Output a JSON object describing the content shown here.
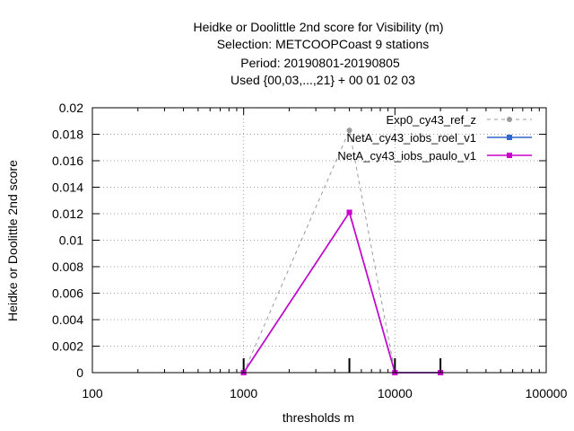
{
  "chart_data": {
    "type": "line",
    "title_lines": [
      "Heidke or Doolittle 2nd score  for Visibility (m)",
      "Selection: METCOOPCoast      9 stations",
      "Period: 20190801-20190805",
      "Used {00,03,...,21} + 00 01 02 03"
    ],
    "xlabel": "thresholds m",
    "ylabel": "Heidke or Doolittle 2nd score",
    "xscale": "log",
    "xlim": [
      100,
      100000
    ],
    "ylim": [
      0,
      0.02
    ],
    "x_ticks": [
      {
        "value": 100,
        "label": "100"
      },
      {
        "value": 1000,
        "label": "1000"
      },
      {
        "value": 10000,
        "label": "10000"
      },
      {
        "value": 100000,
        "label": "100000"
      }
    ],
    "y_ticks": [
      {
        "value": 0,
        "label": "0"
      },
      {
        "value": 0.002,
        "label": "0.002"
      },
      {
        "value": 0.004,
        "label": "0.004"
      },
      {
        "value": 0.006,
        "label": "0.006"
      },
      {
        "value": 0.008,
        "label": "0.008"
      },
      {
        "value": 0.01,
        "label": "0.01"
      },
      {
        "value": 0.012,
        "label": "0.012"
      },
      {
        "value": 0.014,
        "label": "0.014"
      },
      {
        "value": 0.016,
        "label": "0.016"
      },
      {
        "value": 0.018,
        "label": "0.018"
      },
      {
        "value": 0.02,
        "label": "0.02"
      }
    ],
    "grid": true,
    "legend_position": "top-right",
    "observation_marks_x": [
      1000,
      5000,
      10000,
      20000
    ],
    "series": [
      {
        "name": "Exp0_cy43_ref_z",
        "color": "#999999",
        "dash": "dashed",
        "marker": "circle",
        "x": [
          1000,
          5000,
          10000,
          20000
        ],
        "y": [
          0.0,
          0.0183,
          0.0,
          0.0
        ]
      },
      {
        "name": "NetA_cy43_iobs_roel_v1",
        "color": "#3366cc",
        "dash": "solid",
        "marker": "square",
        "x": [
          1000,
          5000,
          10000,
          20000
        ],
        "y": [
          0.0,
          0.0121,
          0.0,
          0.0
        ]
      },
      {
        "name": "NetA_cy43_iobs_paulo_v1",
        "color": "#cc00cc",
        "dash": "solid",
        "marker": "square",
        "x": [
          1000,
          5000,
          10000,
          20000
        ],
        "y": [
          0.0,
          0.0121,
          0.0,
          0.0
        ]
      }
    ]
  }
}
